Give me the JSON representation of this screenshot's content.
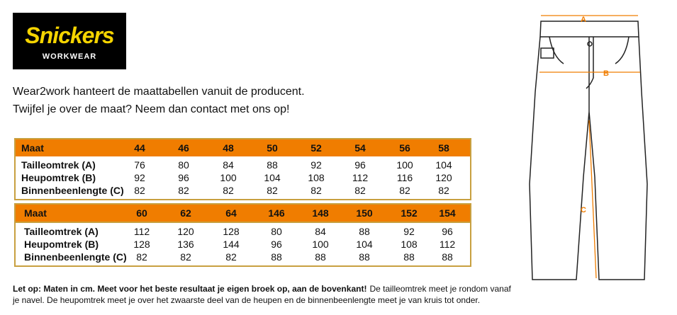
{
  "logo": {
    "brand": "Snickers",
    "tagline": "WORKWEAR"
  },
  "intro": [
    "Wear2work hanteert de maattabellen vanuit de producent.",
    "Twijfel je over de maat? Neem dan contact met ons op!"
  ],
  "tables": [
    {
      "header": [
        "Maat",
        44,
        46,
        48,
        50,
        52,
        54,
        56,
        58
      ],
      "rows": [
        [
          "Tailleomtrek (A)",
          76,
          80,
          84,
          88,
          92,
          96,
          100,
          104
        ],
        [
          "Heupomtrek (B)",
          92,
          96,
          100,
          104,
          108,
          112,
          116,
          120
        ],
        [
          "Binnenbeenlengte (C)",
          82,
          82,
          82,
          82,
          82,
          82,
          82,
          82
        ]
      ]
    },
    {
      "header": [
        "Maat",
        60,
        62,
        64,
        146,
        148,
        150,
        152,
        154
      ],
      "rows": [
        [
          "Tailleomtrek (A)",
          112,
          120,
          128,
          80,
          84,
          88,
          92,
          96
        ],
        [
          "Heupomtrek (B)",
          128,
          136,
          144,
          96,
          100,
          104,
          108,
          112
        ],
        [
          "Binnenbeenlengte (C)",
          82,
          82,
          82,
          88,
          88,
          88,
          88,
          88
        ]
      ]
    }
  ],
  "diagram": {
    "labels": [
      "A",
      "B",
      "C"
    ]
  },
  "note": {
    "bold": "Let op: Maten in cm. Meet voor het beste resultaat je eigen broek op, aan de bovenkant!",
    "text": "De tailleomtrek meet je rondom vanaf je navel. De heupomtrek meet je over het zwaarste deel van de heupen en de binnenbeenlengte meet je van kruis tot onder."
  }
}
